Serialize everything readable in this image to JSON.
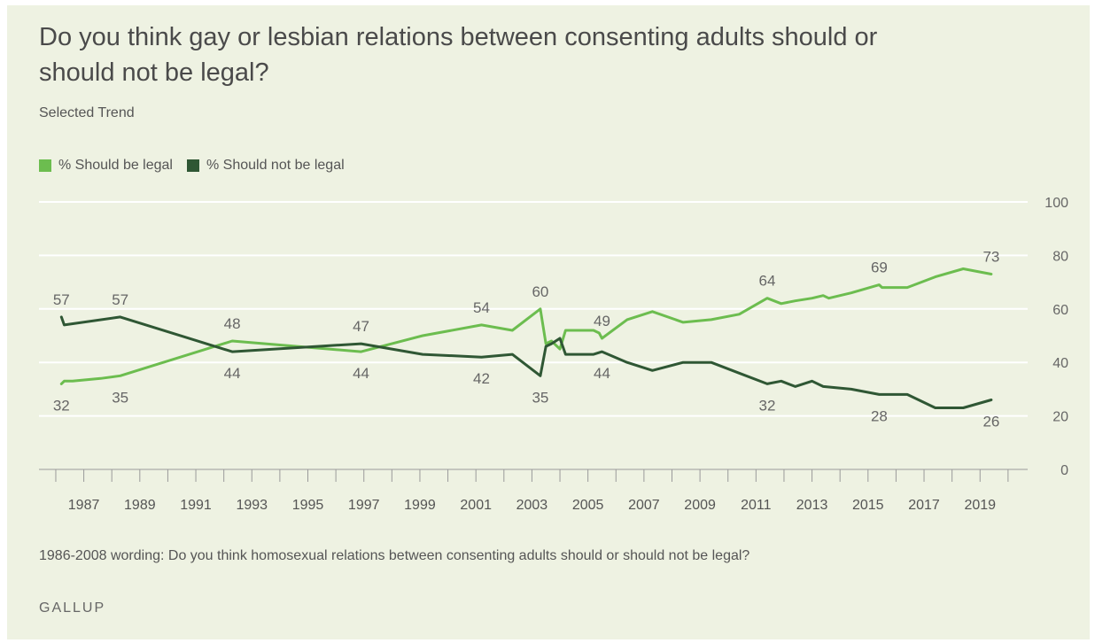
{
  "title": "Do you think gay or lesbian relations between consenting adults should or should not be legal?",
  "subtitle": "Selected Trend",
  "footnote": "1986-2008 wording: Do you think homosexual relations between consenting adults should or should not be legal?",
  "brand": "GALLUP",
  "colors": {
    "legal": "#6cbd4f",
    "not_legal": "#2f5734",
    "background": "#eef2e2",
    "grid": "#ffffff",
    "axis": "#9a9a9a",
    "text": "#555555"
  },
  "chart_data": {
    "type": "line",
    "title": "Do you think gay or lesbian relations between consenting adults should or should not be legal?",
    "subtitle": "Selected Trend",
    "xlabel": "",
    "ylabel": "",
    "xlim": [
      1985.4,
      2020.7
    ],
    "ylim": [
      0,
      100
    ],
    "y_ticks": [
      0,
      20,
      40,
      60,
      80,
      100
    ],
    "x_ticks": [
      1987,
      1989,
      1991,
      1993,
      1995,
      1997,
      1999,
      2001,
      2003,
      2005,
      2007,
      2009,
      2011,
      2013,
      2015,
      2017,
      2019
    ],
    "grid": true,
    "legend_position": "top-left",
    "series": [
      {
        "name": "% Should be legal",
        "color": "#6cbd4f",
        "x": [
          1986.2,
          1986.3,
          1986.6,
          1987.6,
          1988.3,
          1992.3,
          1996.9,
          1999.1,
          2001.2,
          2002.3,
          2003.3,
          2003.5,
          2003.7,
          2004.0,
          2004.2,
          2005.2,
          2005.4,
          2005.5,
          2006.4,
          2007.3,
          2008.4,
          2009.4,
          2010.4,
          2011.4,
          2011.9,
          2012.4,
          2013.0,
          2013.4,
          2013.6,
          2014.4,
          2015.4,
          2015.5,
          2016.4,
          2017.4,
          2018.4,
          2019.4
        ],
        "values": [
          32,
          33,
          33,
          34,
          35,
          48,
          44,
          50,
          54,
          52,
          60,
          47,
          48,
          45,
          52,
          52,
          51,
          49,
          56,
          59,
          55,
          56,
          58,
          64,
          62,
          63,
          64,
          65,
          64,
          66,
          69,
          68,
          68,
          72,
          75,
          73
        ],
        "labels": [
          {
            "x": 1986.2,
            "y": 32,
            "text": "32",
            "pos": "below"
          },
          {
            "x": 1988.3,
            "y": 35,
            "text": "35",
            "pos": "below"
          },
          {
            "x": 1992.3,
            "y": 48,
            "text": "48",
            "pos": "above"
          },
          {
            "x": 1996.9,
            "y": 44,
            "text": "44",
            "pos": "below"
          },
          {
            "x": 2001.2,
            "y": 54,
            "text": "54",
            "pos": "above"
          },
          {
            "x": 2003.3,
            "y": 60,
            "text": "60",
            "pos": "above"
          },
          {
            "x": 2005.5,
            "y": 49,
            "text": "49",
            "pos": "above"
          },
          {
            "x": 2011.4,
            "y": 64,
            "text": "64",
            "pos": "above"
          },
          {
            "x": 2015.4,
            "y": 69,
            "text": "69",
            "pos": "above"
          },
          {
            "x": 2019.4,
            "y": 73,
            "text": "73",
            "pos": "above"
          }
        ]
      },
      {
        "name": "% Should not be legal",
        "color": "#2f5734",
        "x": [
          1986.2,
          1986.3,
          1988.3,
          1992.3,
          1996.9,
          1999.1,
          2001.2,
          2002.3,
          2003.3,
          2003.5,
          2003.7,
          2004.0,
          2004.2,
          2005.2,
          2005.5,
          2006.4,
          2007.3,
          2008.4,
          2009.4,
          2010.4,
          2011.4,
          2011.9,
          2012.4,
          2013.0,
          2013.4,
          2014.4,
          2015.4,
          2016.4,
          2017.4,
          2018.4,
          2019.4
        ],
        "values": [
          57,
          54,
          57,
          44,
          47,
          43,
          42,
          43,
          35,
          46,
          47,
          49,
          43,
          43,
          44,
          40,
          37,
          40,
          40,
          36,
          32,
          33,
          31,
          33,
          31,
          30,
          28,
          28,
          23,
          23,
          26
        ],
        "labels": [
          {
            "x": 1986.2,
            "y": 57,
            "text": "57",
            "pos": "above"
          },
          {
            "x": 1988.3,
            "y": 57,
            "text": "57",
            "pos": "above"
          },
          {
            "x": 1992.3,
            "y": 44,
            "text": "44",
            "pos": "below"
          },
          {
            "x": 1996.9,
            "y": 47,
            "text": "47",
            "pos": "above"
          },
          {
            "x": 2001.2,
            "y": 42,
            "text": "42",
            "pos": "below"
          },
          {
            "x": 2003.3,
            "y": 35,
            "text": "35",
            "pos": "below"
          },
          {
            "x": 2005.5,
            "y": 44,
            "text": "44",
            "pos": "below"
          },
          {
            "x": 2011.4,
            "y": 32,
            "text": "32",
            "pos": "below"
          },
          {
            "x": 2015.4,
            "y": 28,
            "text": "28",
            "pos": "below"
          },
          {
            "x": 2019.4,
            "y": 26,
            "text": "26",
            "pos": "below"
          }
        ]
      }
    ]
  }
}
